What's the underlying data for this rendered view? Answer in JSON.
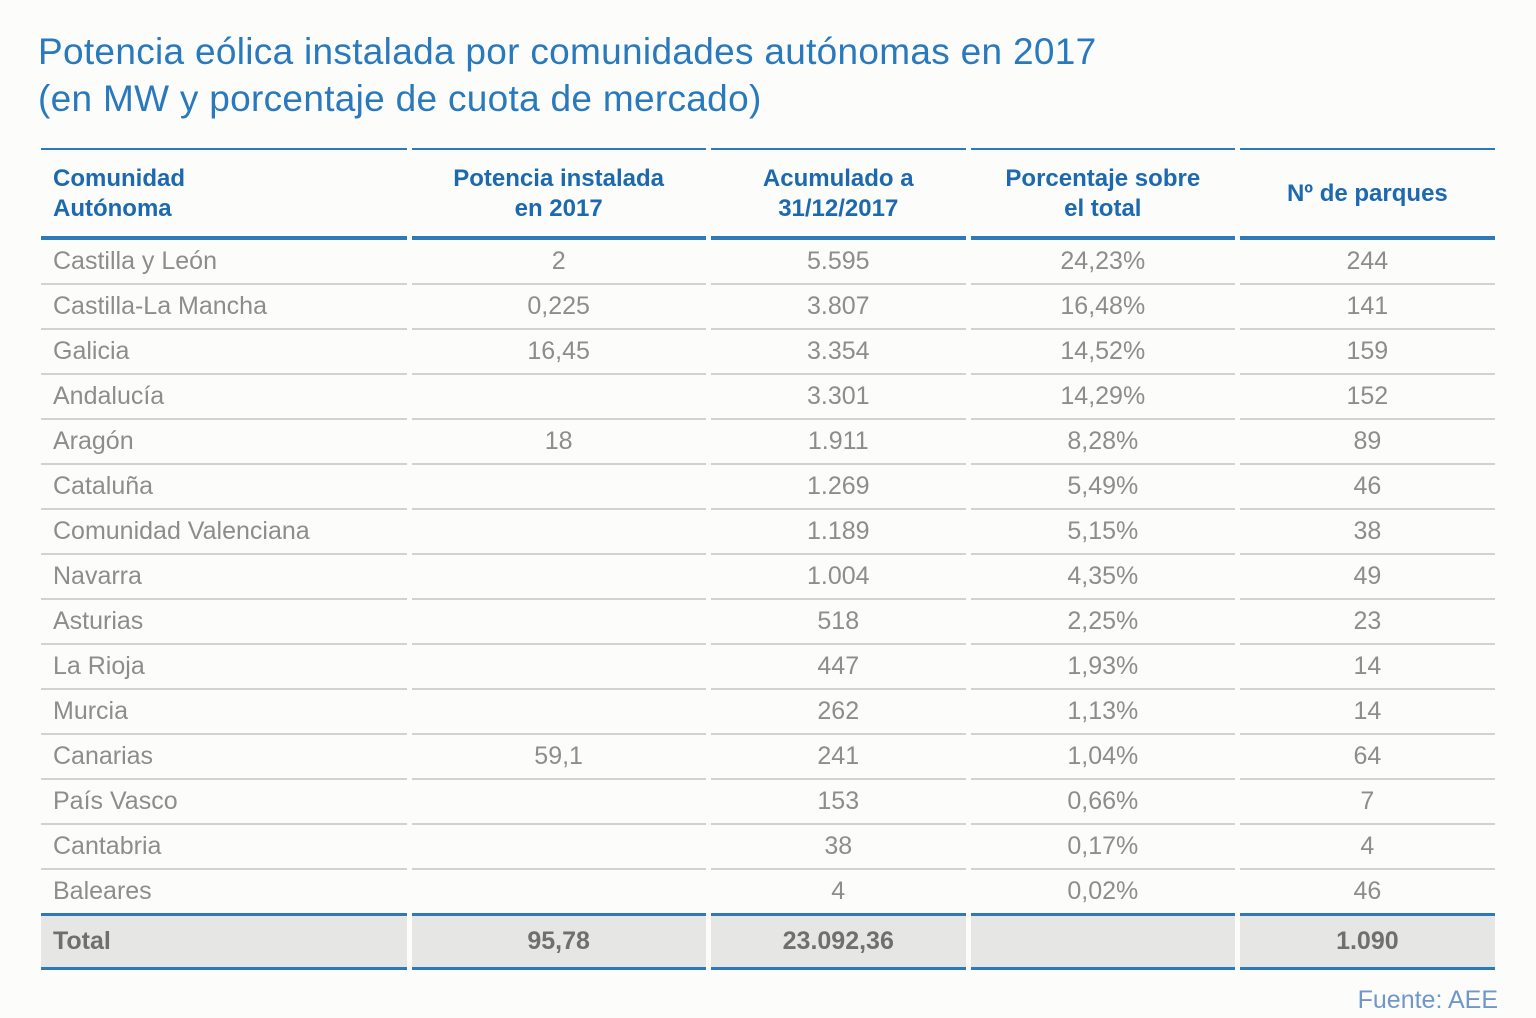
{
  "title": {
    "line1": "Potencia eólica instalada por comunidades autónomas en 2017",
    "line2": "(en MW y porcentaje de cuota de mercado)"
  },
  "chart_data": {
    "type": "table",
    "title": "Potencia eólica instalada por comunidades autónomas en 2017 (en MW y porcentaje de cuota de mercado)",
    "units": "MW",
    "columns": [
      "Comunidad Autónoma",
      "Potencia instalada en 2017",
      "Acumulado a 31/12/2017",
      "Porcentaje sobre el total",
      "Nº de parques"
    ],
    "column_headers_display": [
      "Comunidad\nAutónoma",
      "Potencia instalada\nen 2017",
      "Acumulado a\n31/12/2017",
      "Porcentaje sobre\nel total",
      "Nº de parques"
    ],
    "rows": [
      [
        "Castilla y León",
        "2",
        "5.595",
        "24,23%",
        "244"
      ],
      [
        "Castilla-La Mancha",
        "0,225",
        "3.807",
        "16,48%",
        "141"
      ],
      [
        "Galicia",
        "16,45",
        "3.354",
        "14,52%",
        "159"
      ],
      [
        "Andalucía",
        "",
        "3.301",
        "14,29%",
        "152"
      ],
      [
        "Aragón",
        "18",
        "1.911",
        "8,28%",
        "89"
      ],
      [
        "Cataluña",
        "",
        "1.269",
        "5,49%",
        "46"
      ],
      [
        "Comunidad Valenciana",
        "",
        "1.189",
        "5,15%",
        "38"
      ],
      [
        "Navarra",
        "",
        "1.004",
        "4,35%",
        "49"
      ],
      [
        "Asturias",
        "",
        "518",
        "2,25%",
        "23"
      ],
      [
        "La Rioja",
        "",
        "447",
        "1,93%",
        "14"
      ],
      [
        "Murcia",
        "",
        "262",
        "1,13%",
        "14"
      ],
      [
        "Canarias",
        "59,1",
        "241",
        "1,04%",
        "64"
      ],
      [
        "País Vasco",
        "",
        "153",
        "0,66%",
        "7"
      ],
      [
        "Cantabria",
        "",
        "38",
        "0,17%",
        "4"
      ],
      [
        "Baleares",
        "",
        "4",
        "0,02%",
        "46"
      ]
    ],
    "total_row": [
      "Total",
      "95,78",
      "23.092,36",
      "",
      "1.090"
    ]
  },
  "footer": {
    "source_label": "Fuente: AEE"
  },
  "colors": {
    "title_blue": "#2979bd",
    "header_blue": "#1d69b0",
    "line_blue": "#2e7ab8",
    "row_text": "#8d8d8d",
    "row_line": "#d2d2d0",
    "total_bg": "#e6e6e4",
    "total_text": "#6f6f6f",
    "source_blue": "#6f97c9",
    "page_bg": "#fcfcfa"
  }
}
